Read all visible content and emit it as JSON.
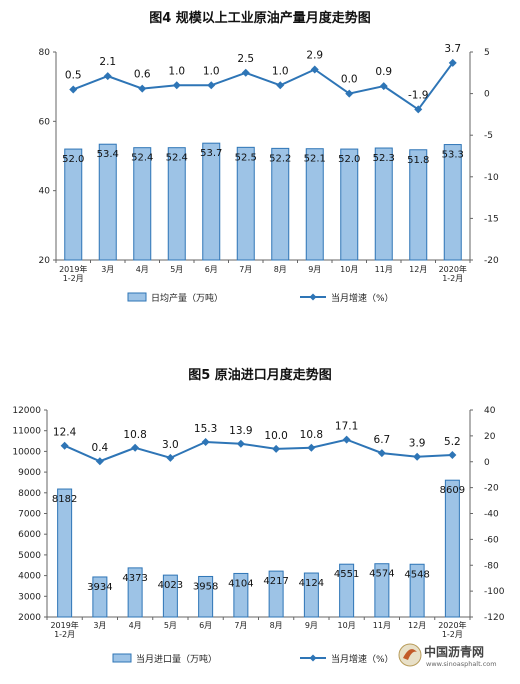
{
  "chart_data": [
    {
      "type": "bar",
      "title": "图4 规模以上工业原油产量月度走势图",
      "categories": [
        "2019年\n1-2月",
        "3月",
        "4月",
        "5月",
        "6月",
        "7月",
        "8月",
        "9月",
        "10月",
        "11月",
        "12月",
        "2020年\n1-2月"
      ],
      "series": [
        {
          "name": "日均产量（万吨）",
          "type": "bar",
          "axis": "left",
          "values": [
            52.0,
            53.4,
            52.4,
            52.4,
            53.7,
            52.5,
            52.2,
            52.1,
            52.0,
            52.3,
            51.8,
            53.3
          ]
        },
        {
          "name": "当月增速（%）",
          "type": "line",
          "axis": "right",
          "values": [
            0.5,
            2.1,
            0.6,
            1.0,
            1.0,
            2.5,
            1.0,
            2.9,
            0.0,
            0.9,
            -1.9,
            3.7
          ]
        }
      ],
      "ylim_left": [
        20,
        80
      ],
      "yticks_left": [
        20,
        40,
        60,
        80
      ],
      "ylim_right": [
        -20,
        5
      ],
      "yticks_right": [
        5,
        0,
        -5,
        -10,
        -15,
        -20
      ],
      "legend_position": "bottom",
      "colors": {
        "bar_fill": "#9dc3e6",
        "bar_stroke": "#2e75b6",
        "line": "#2e75b6"
      }
    },
    {
      "type": "bar",
      "title": "图5 原油进口月度走势图",
      "categories": [
        "2019年\n1-2月",
        "3月",
        "4月",
        "5月",
        "6月",
        "7月",
        "8月",
        "9月",
        "10月",
        "11月",
        "12月",
        "2020年\n1-2月"
      ],
      "series": [
        {
          "name": "当月进口量（万吨）",
          "type": "bar",
          "axis": "left",
          "values": [
            8182,
            3934,
            4373,
            4023,
            3958,
            4104,
            4217,
            4124,
            4551,
            4574,
            4548,
            8609
          ]
        },
        {
          "name": "当月增速（%）",
          "type": "line",
          "axis": "right",
          "values": [
            12.4,
            0.4,
            10.8,
            3.0,
            15.3,
            13.9,
            10.0,
            10.8,
            17.1,
            6.7,
            3.9,
            5.2
          ]
        }
      ],
      "ylim_left": [
        2000,
        12000
      ],
      "yticks_left": [
        2000,
        3000,
        4000,
        5000,
        6000,
        7000,
        8000,
        9000,
        10000,
        11000,
        12000
      ],
      "ylim_right": [
        -120,
        40
      ],
      "yticks_right": [
        40,
        20,
        0,
        -20,
        -40,
        -60,
        -80,
        -100,
        -120
      ],
      "legend_position": "bottom",
      "colors": {
        "bar_fill": "#9dc3e6",
        "bar_stroke": "#2e75b6",
        "line": "#2e75b6"
      }
    }
  ],
  "watermark": {
    "text": "中国沥青网",
    "url": "www.sinoasphalt.com"
  }
}
